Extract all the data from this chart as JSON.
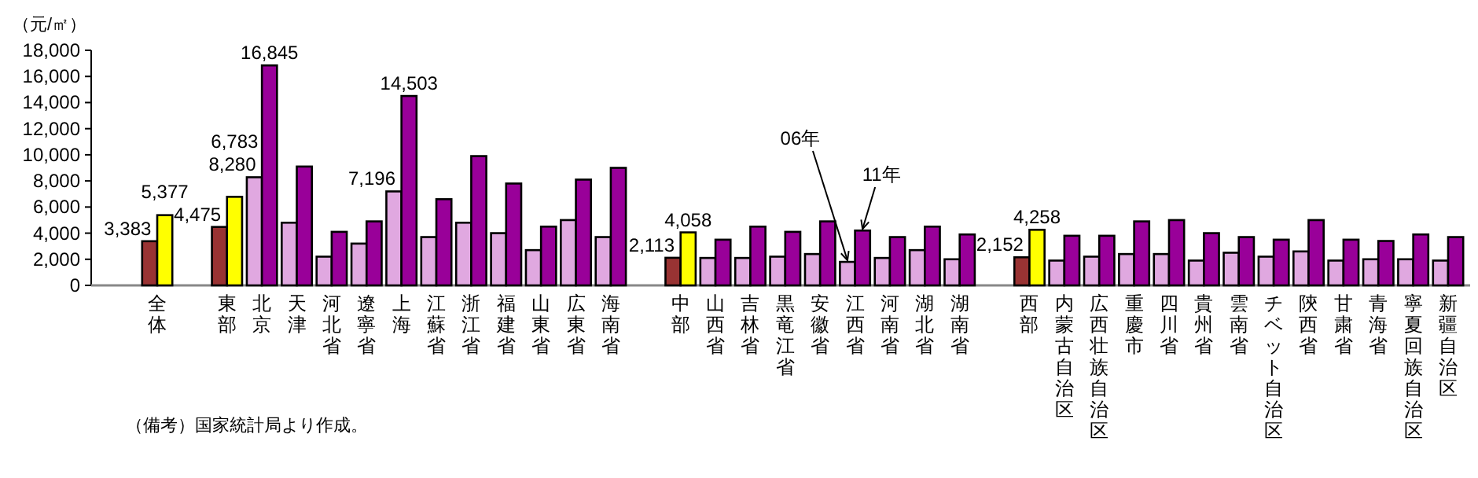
{
  "chart_data": {
    "type": "bar",
    "ylabel": "（元/㎡）",
    "annotations": [
      "（備考）国家統計局より作成。"
    ],
    "categories": [
      "全体",
      null,
      "東部",
      "北京",
      "天津",
      "河北省",
      "遼寧省",
      "上海",
      "江蘇省",
      "浙江省",
      "福建省",
      "山東省",
      "広東省",
      "海南省",
      null,
      "中部",
      "山西省",
      "吉林省",
      "黒竜江省",
      "安徽省",
      "江西省",
      "河南省",
      "湖北省",
      "湖南省",
      null,
      "西部",
      "内蒙古自治区",
      "広西壮族自治区",
      "重慶市",
      "四川省",
      "貴州省",
      "雲南省",
      "チベット自治区",
      "陝西省",
      "甘粛省",
      "青海省",
      "寧夏回族自治区",
      "新疆自治区"
    ],
    "series": [
      {
        "name": "06年",
        "values": [
          3383,
          null,
          4475,
          8280,
          4800,
          2200,
          3200,
          7196,
          3700,
          4800,
          4000,
          2700,
          5000,
          3700,
          null,
          2113,
          2100,
          2100,
          2200,
          2400,
          1800,
          2100,
          2700,
          2000,
          null,
          2152,
          1900,
          2200,
          2400,
          2400,
          1900,
          2500,
          2200,
          2600,
          1900,
          2000,
          2000,
          1900
        ],
        "colors": [
          "#993333",
          null,
          "#993333",
          "#e0a8e0",
          "#e0a8e0",
          "#e0a8e0",
          "#e0a8e0",
          "#e0a8e0",
          "#e0a8e0",
          "#e0a8e0",
          "#e0a8e0",
          "#e0a8e0",
          "#e0a8e0",
          "#e0a8e0",
          null,
          "#993333",
          "#e0a8e0",
          "#e0a8e0",
          "#e0a8e0",
          "#e0a8e0",
          "#e0a8e0",
          "#e0a8e0",
          "#e0a8e0",
          "#e0a8e0",
          null,
          "#993333",
          "#e0a8e0",
          "#e0a8e0",
          "#e0a8e0",
          "#e0a8e0",
          "#e0a8e0",
          "#e0a8e0",
          "#e0a8e0",
          "#e0a8e0",
          "#e0a8e0",
          "#e0a8e0",
          "#e0a8e0",
          "#e0a8e0"
        ],
        "value_labels": [
          "3,383",
          null,
          "4,475",
          "8,280",
          null,
          null,
          null,
          "7,196",
          null,
          null,
          null,
          null,
          null,
          null,
          null,
          "2,113",
          null,
          null,
          null,
          null,
          null,
          null,
          null,
          null,
          null,
          "2,152",
          null,
          null,
          null,
          null,
          null,
          null,
          null,
          null,
          null,
          null,
          null,
          null
        ]
      },
      {
        "name": "11年",
        "values": [
          5377,
          null,
          6783,
          16845,
          9100,
          4100,
          4900,
          14503,
          6600,
          9900,
          7800,
          4500,
          8100,
          9000,
          null,
          4058,
          3500,
          4500,
          4100,
          4900,
          4200,
          3700,
          4500,
          3900,
          null,
          4258,
          3800,
          3800,
          4900,
          5000,
          4000,
          3700,
          3500,
          5000,
          3500,
          3400,
          3900,
          3700
        ],
        "colors": [
          "#ffff00",
          null,
          "#ffff00",
          "#990099",
          "#990099",
          "#990099",
          "#990099",
          "#990099",
          "#990099",
          "#990099",
          "#990099",
          "#990099",
          "#990099",
          "#990099",
          null,
          "#ffff00",
          "#990099",
          "#990099",
          "#990099",
          "#990099",
          "#990099",
          "#990099",
          "#990099",
          "#990099",
          null,
          "#ffff00",
          "#990099",
          "#990099",
          "#990099",
          "#990099",
          "#990099",
          "#990099",
          "#990099",
          "#990099",
          "#990099",
          "#990099",
          "#990099",
          "#990099"
        ],
        "value_labels": [
          "5,377",
          null,
          "6,783",
          "16,845",
          null,
          null,
          null,
          "14,503",
          null,
          null,
          null,
          null,
          null,
          null,
          null,
          "4,058",
          null,
          null,
          null,
          null,
          null,
          null,
          null,
          null,
          null,
          "4,258",
          null,
          null,
          null,
          null,
          null,
          null,
          null,
          null,
          null,
          null,
          null,
          null
        ]
      }
    ],
    "ylim": [
      0,
      18000
    ],
    "yticks": [
      0,
      {
        "value": 2000,
        "label": "2,000"
      },
      {
        "value": 4000,
        "label": "4,000"
      },
      {
        "value": 6000,
        "label": "6,000"
      },
      {
        "value": 8000,
        "label": "8,000"
      },
      {
        "value": 10000,
        "label": "10,000"
      },
      {
        "value": 12000,
        "label": "12,000"
      },
      {
        "value": 14000,
        "label": "14,000"
      },
      {
        "value": 16000,
        "label": "16,000"
      },
      {
        "value": 18000,
        "label": "18,000"
      }
    ],
    "legend": false
  }
}
